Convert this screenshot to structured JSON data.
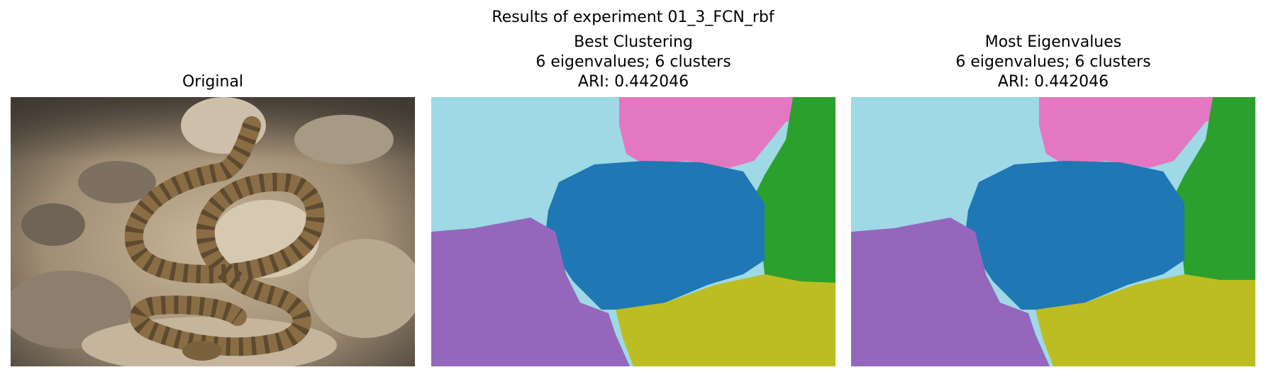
{
  "figure": {
    "suptitle": "Results of experiment 01_3_FCN_rbf",
    "panels": [
      {
        "title_lines": [
          "Original"
        ],
        "content": "photo of a coiled rattlesnake on rocks"
      },
      {
        "title_lines": [
          "Best Clustering",
          "6 eigenvalues; 6 clusters",
          "ARI: 0.442046"
        ]
      },
      {
        "title_lines": [
          "Most Eigenvalues",
          "6 eigenvalues; 6 clusters",
          "ARI: 0.442046"
        ]
      }
    ]
  },
  "colors": {
    "cluster_light_blue": "#9ed9e5",
    "cluster_pink": "#e377c2",
    "cluster_green": "#2ca02c",
    "cluster_blue": "#1f77b4",
    "cluster_purple": "#9467bd",
    "cluster_olive": "#bcbd22"
  }
}
